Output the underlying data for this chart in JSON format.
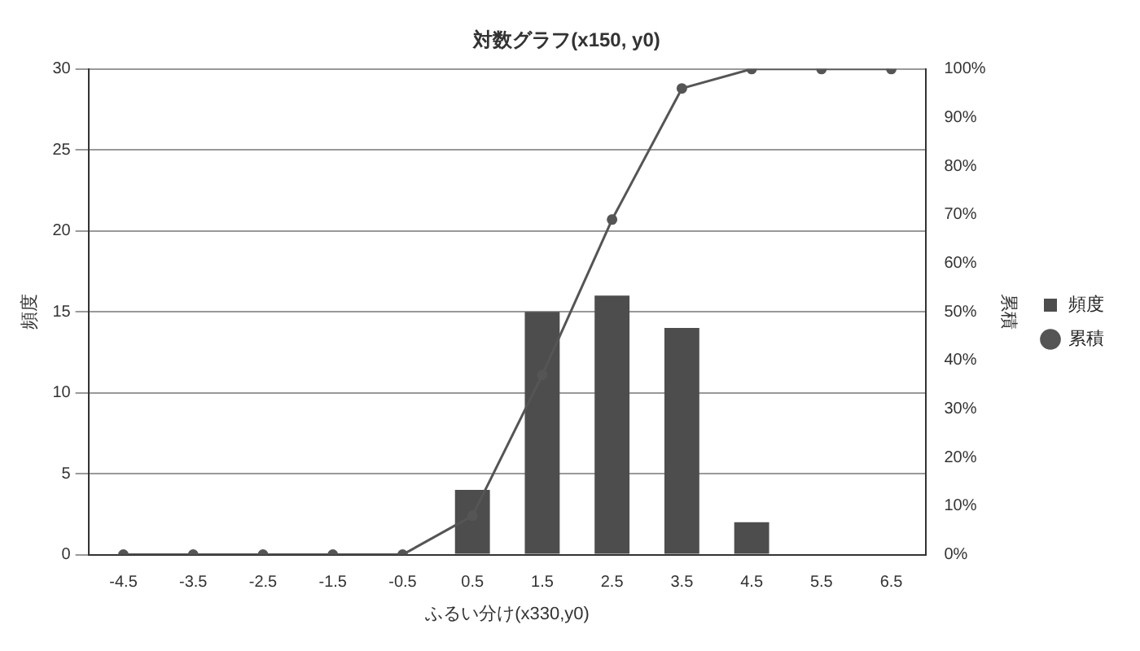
{
  "chart_data": {
    "type": "bar",
    "title": "対数グラフ(x150, y0)",
    "xlabel": "ふるい分け(x330,y0)",
    "ylabel": "頻度",
    "y2label": "累積",
    "categories": [
      "-4.5",
      "-3.5",
      "-2.5",
      "-1.5",
      "-0.5",
      "0.5",
      "1.5",
      "2.5",
      "3.5",
      "4.5",
      "5.5",
      "6.5"
    ],
    "series": [
      {
        "name": "頻度",
        "color": "#4d4d4d",
        "values": [
          0,
          0,
          0,
          0,
          0,
          4,
          15,
          16,
          14,
          2,
          0,
          0
        ]
      },
      {
        "name": "累積",
        "type": "line",
        "axis": "y2",
        "color": "#555555",
        "values": [
          0,
          0,
          0,
          0,
          0,
          8,
          37,
          69,
          96,
          100,
          100,
          100
        ]
      }
    ],
    "ylim": [
      0,
      30
    ],
    "yticks": [
      0,
      5,
      10,
      15,
      20,
      25,
      30
    ],
    "y2lim": [
      0,
      100
    ],
    "y2ticks": [
      {
        "value": 0,
        "label": "0%"
      },
      {
        "value": 10,
        "label": "10%"
      },
      {
        "value": 20,
        "label": "20%"
      },
      {
        "value": 30,
        "label": "30%"
      },
      {
        "value": 40,
        "label": "40%"
      },
      {
        "value": 50,
        "label": "50%"
      },
      {
        "value": 60,
        "label": "60%"
      },
      {
        "value": 70,
        "label": "70%"
      },
      {
        "value": 80,
        "label": "80%"
      },
      {
        "value": 90,
        "label": "90%"
      },
      {
        "value": 100,
        "label": "100%"
      }
    ],
    "grid": "y",
    "legend": "right",
    "marker": "circle"
  }
}
